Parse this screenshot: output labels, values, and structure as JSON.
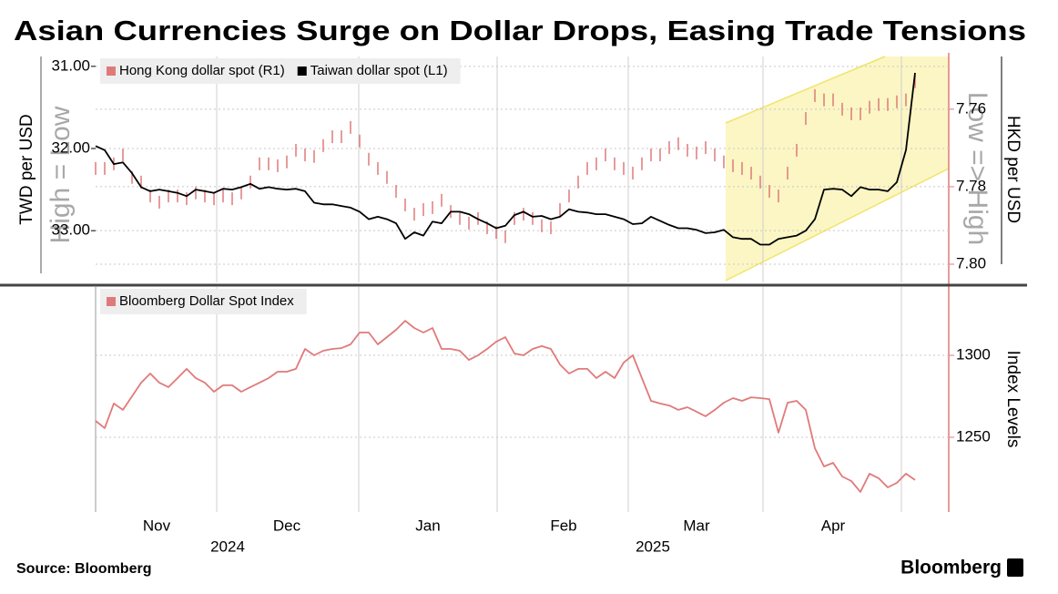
{
  "title": "Asian Currencies Surge on Dollar Drops, Easing Trade Tensions",
  "source": "Source: Bloomberg",
  "brand": "Bloomberg",
  "chart_data": [
    {
      "type": "line",
      "ylabel": "TWD per USD",
      "y2label": "HKD per USD",
      "annotations": [
        "High = Low",
        "Low => High"
      ],
      "xlim": [
        0,
        93.7
      ],
      "xgrid": [
        13.3,
        28.9,
        44.1,
        58.5,
        73.3,
        88.5
      ],
      "ylim": [
        33.63,
        30.88
      ],
      "yticks": [
        {
          "value": 31,
          "label": "31.00"
        },
        {
          "value": 32,
          "label": "32.00"
        },
        {
          "value": 33,
          "label": "33.00"
        }
      ],
      "y2lim": [
        7.8047,
        7.7464
      ],
      "y2ticks": [
        7.76,
        7.78,
        {
          "value": 7.8,
          "label": "7.80"
        }
      ],
      "grid": true,
      "series": [
        {
          "name": "Hong Kong dollar spot (R1)",
          "color": "#e07a7a",
          "axis": "y2",
          "style": "bars",
          "values": [
            7.7753,
            7.7753,
            7.7741,
            7.7718,
            7.7776,
            7.7788,
            7.7824,
            7.784,
            7.7824,
            7.7824,
            7.7831,
            7.7816,
            7.7824,
            7.7831,
            7.7824,
            7.7831,
            7.7816,
            7.7788,
            7.7741,
            7.7741,
            7.7746,
            7.7736,
            7.7706,
            7.7718,
            7.7722,
            7.7694,
            7.7671,
            7.7671,
            7.7647,
            7.7682,
            7.7729,
            7.7753,
            7.7776,
            7.7812,
            7.7847,
            7.7871,
            7.7859,
            7.7854,
            7.7835,
            7.7864,
            7.7882,
            7.7894,
            7.7882,
            7.7906,
            7.7918,
            7.7929,
            7.7882,
            7.7871,
            7.7882,
            7.7901,
            7.7906,
            7.7859,
            7.7824,
            7.7788,
            7.7753,
            7.7741,
            7.7718,
            7.7741,
            7.7753,
            7.7765,
            7.7741,
            7.7718,
            7.7718,
            7.7699,
            7.7689,
            7.7706,
            7.7713,
            7.7699,
            7.7718,
            7.7736,
            7.7746,
            7.7753,
            7.7765,
            7.7788,
            7.7812,
            7.7824,
            7.7765,
            7.7706,
            7.7624,
            7.7565,
            7.7576,
            7.7576,
            7.76,
            7.7612,
            7.7612,
            7.7595,
            7.7588,
            7.7588,
            7.7581,
            7.7576,
            7.7529
          ]
        },
        {
          "name": "Taiwan dollar spot (L1)",
          "color": "#000000",
          "style": "line",
          "values": [
            31.97,
            32.02,
            32.19,
            32.17,
            32.3,
            32.47,
            32.52,
            32.5,
            32.52,
            32.54,
            32.58,
            32.5,
            32.52,
            32.54,
            32.49,
            32.5,
            32.47,
            32.43,
            32.49,
            32.47,
            32.49,
            32.5,
            32.49,
            32.52,
            32.66,
            32.68,
            32.68,
            32.7,
            32.72,
            32.77,
            32.86,
            32.83,
            32.86,
            32.91,
            33.1,
            33.02,
            33.06,
            32.89,
            32.91,
            32.77,
            32.77,
            32.8,
            32.86,
            32.91,
            32.97,
            32.94,
            32.81,
            32.77,
            32.83,
            32.82,
            32.86,
            32.83,
            32.74,
            32.77,
            32.78,
            32.8,
            32.8,
            32.83,
            32.86,
            32.92,
            32.91,
            32.83,
            32.88,
            32.93,
            32.97,
            32.97,
            32.99,
            33.03,
            33.02,
            32.99,
            33.08,
            33.1,
            33.1,
            33.17,
            33.17,
            33.1,
            33.08,
            33.06,
            33.0,
            32.86,
            32.5,
            32.49,
            32.5,
            32.58,
            32.47,
            32.5,
            32.5,
            32.52,
            32.41,
            32.02,
            31.08
          ]
        }
      ]
    },
    {
      "type": "line",
      "ylabel": "Index Levels",
      "yaxis": "right",
      "xlim": [
        0,
        93.7
      ],
      "xgrid": [
        13.3,
        28.9,
        44.1,
        58.5,
        73.3,
        88.5
      ],
      "xticks": [
        {
          "value": 6.7,
          "label": "Nov"
        },
        {
          "value": 21,
          "label": "Dec"
        },
        {
          "value": 36.5,
          "label": "Jan"
        },
        {
          "value": 51.4,
          "label": "Feb"
        },
        {
          "value": 66,
          "label": "Mar"
        },
        {
          "value": 81,
          "label": "Apr"
        }
      ],
      "xyears": [
        {
          "value": 14.5,
          "label": "2024"
        },
        {
          "value": 61.2,
          "label": "2025"
        }
      ],
      "ylim": [
        1204.4,
        1341.7
      ],
      "yticks": [
        1250,
        1300
      ],
      "grid": true,
      "series": [
        {
          "name": "Bloomberg Dollar Spot Index",
          "color": "#e07a7a",
          "style": "line",
          "values": [
            1260.0,
            1255.6,
            1270.6,
            1266.7,
            1275.0,
            1283.3,
            1288.9,
            1283.3,
            1280.6,
            1286.1,
            1291.7,
            1286.1,
            1283.3,
            1277.8,
            1281.7,
            1281.7,
            1277.8,
            1280.6,
            1283.3,
            1286.1,
            1290.0,
            1290.0,
            1291.7,
            1303.9,
            1300.0,
            1302.8,
            1303.9,
            1304.4,
            1306.7,
            1313.9,
            1313.9,
            1306.7,
            1311.1,
            1315.6,
            1321.1,
            1316.7,
            1313.9,
            1316.7,
            1303.9,
            1303.9,
            1302.8,
            1297.2,
            1300.0,
            1303.9,
            1308.3,
            1311.1,
            1301.1,
            1300.0,
            1303.9,
            1305.6,
            1303.9,
            1294.4,
            1288.9,
            1291.7,
            1291.7,
            1286.1,
            1290.0,
            1286.1,
            1295.6,
            1300.0,
            1286.1,
            1272.2,
            1270.6,
            1269.4,
            1266.7,
            1268.3,
            1265.6,
            1262.8,
            1266.7,
            1271.1,
            1273.9,
            1272.2,
            1274.4,
            1273.9,
            1273.3,
            1252.8,
            1271.1,
            1272.2,
            1266.7,
            1243.3,
            1232.2,
            1234.4,
            1226.1,
            1223.3,
            1216.7,
            1227.8,
            1225.0,
            1219.4,
            1222.2,
            1227.8,
            1223.9
          ]
        }
      ]
    }
  ]
}
